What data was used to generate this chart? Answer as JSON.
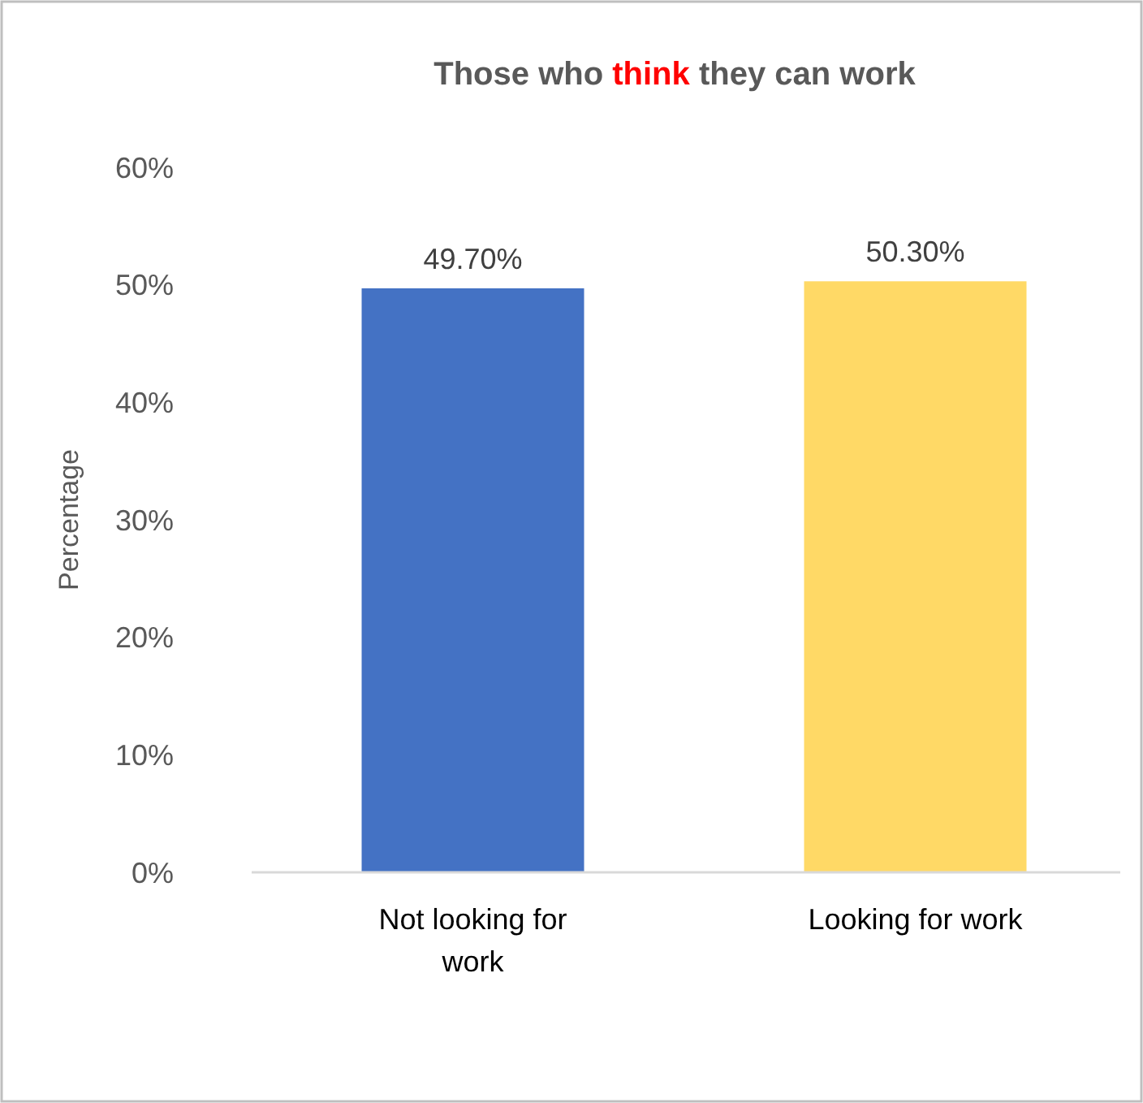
{
  "chart_data": {
    "type": "bar",
    "title": "Those who think they can work",
    "ylabel": "Percentage",
    "categories": [
      "Not looking for work",
      "Looking for work"
    ],
    "values": [
      49.7,
      50.3
    ],
    "colors": [
      "#4472c4",
      "#ffd966"
    ],
    "value_labels": [
      "49.70%",
      "50.30%"
    ],
    "ylim": [
      0,
      60
    ],
    "yticks": [
      {
        "value": 0,
        "label": "0%"
      },
      {
        "value": 10,
        "label": "10%"
      },
      {
        "value": 20,
        "label": "20%"
      },
      {
        "value": 30,
        "label": "30%"
      },
      {
        "value": 40,
        "label": "40%"
      },
      {
        "value": 50,
        "label": "50%"
      },
      {
        "value": 60,
        "label": "60%"
      }
    ],
    "grid": false,
    "legend": false
  }
}
